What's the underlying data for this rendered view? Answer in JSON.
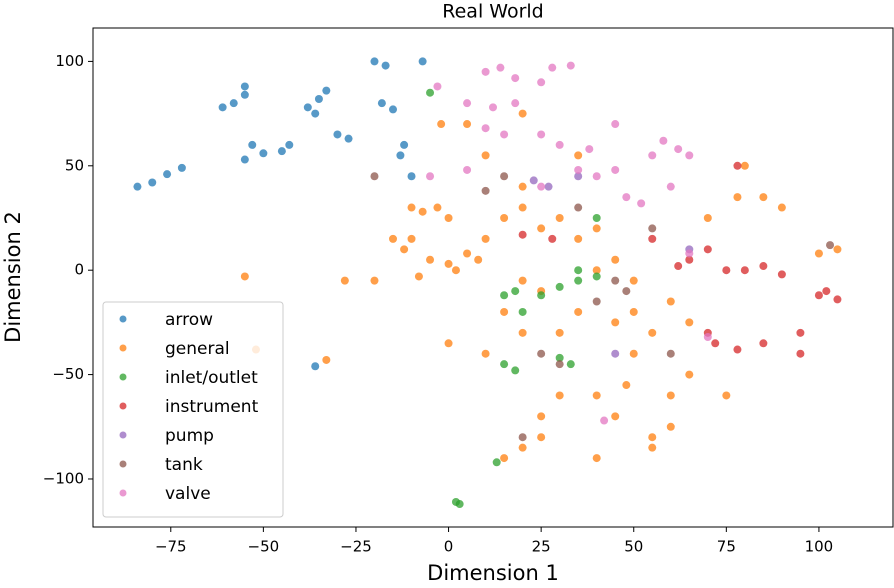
{
  "chart_data": {
    "type": "scatter",
    "title": "Real World",
    "x_label": "Dimension 1",
    "y_label": "Dimension 2",
    "xlim": [
      -96,
      120
    ],
    "ylim": [
      -123,
      116
    ],
    "xticks": [
      {
        "value": -75,
        "label": "−75"
      },
      {
        "value": -50,
        "label": "−50"
      },
      {
        "value": -25,
        "label": "−25"
      },
      0,
      25,
      50,
      75,
      100
    ],
    "yticks": [
      {
        "value": -100,
        "label": "−100"
      },
      {
        "value": -50,
        "label": "−50"
      },
      0,
      50,
      100
    ],
    "legend": "lower left",
    "grid": false,
    "series": [
      {
        "name": "arrow",
        "color": "#1f77b4",
        "x": [
          -80,
          -76,
          -72,
          -84,
          -58,
          -55,
          -61,
          -55,
          -35,
          -38,
          -33,
          -36,
          -53,
          -50,
          -45,
          -55,
          -43,
          -27,
          -30,
          -20,
          -17,
          -18,
          -15,
          -12,
          -13,
          -7,
          -10,
          -36
        ],
        "y": [
          42,
          46,
          49,
          40,
          80,
          84,
          78,
          88,
          82,
          78,
          86,
          75,
          60,
          56,
          57,
          53,
          60,
          63,
          65,
          100,
          98,
          80,
          77,
          60,
          55,
          100,
          45,
          -46
        ]
      },
      {
        "name": "general",
        "color": "#ff7f0e",
        "x": [
          -7,
          -3,
          0,
          -10,
          -5,
          0,
          5,
          -8,
          -12,
          2,
          8,
          -15,
          10,
          15,
          20,
          25,
          30,
          35,
          40,
          20,
          25,
          30,
          20,
          15,
          35,
          45,
          50,
          55,
          50,
          48,
          40,
          30,
          25,
          45,
          20,
          15,
          25,
          40,
          55,
          60,
          65,
          75,
          60,
          55,
          78,
          85,
          90,
          105,
          100,
          60,
          65,
          -20,
          -28,
          -55,
          -52,
          -33,
          0,
          10,
          40,
          45,
          50,
          70,
          80,
          20,
          20,
          35,
          10,
          -2,
          5,
          -10
        ],
        "y": [
          28,
          30,
          25,
          30,
          5,
          3,
          8,
          -3,
          10,
          0,
          5,
          15,
          15,
          25,
          30,
          20,
          25,
          15,
          20,
          -5,
          -10,
          -30,
          -30,
          -20,
          -20,
          -25,
          -20,
          -30,
          -40,
          -55,
          -60,
          -60,
          -70,
          -70,
          -85,
          -90,
          -80,
          -90,
          -85,
          -60,
          -50,
          -60,
          -75,
          -80,
          35,
          35,
          30,
          10,
          8,
          -15,
          -25,
          -5,
          -5,
          -3,
          -38,
          -43,
          -35,
          -40,
          0,
          5,
          -5,
          25,
          50,
          40,
          75,
          55,
          55,
          70,
          70,
          15
        ]
      },
      {
        "name": "inlet/outlet",
        "color": "#2ca02c",
        "x": [
          18,
          15,
          25,
          30,
          35,
          40,
          35,
          15,
          18,
          30,
          33,
          2,
          3,
          40,
          -5,
          20,
          13
        ],
        "y": [
          -10,
          -12,
          -12,
          -8,
          -5,
          -3,
          0,
          -45,
          -48,
          -42,
          -45,
          -111,
          -112,
          25,
          85,
          -20,
          -92
        ]
      },
      {
        "name": "instrument",
        "color": "#d62728",
        "x": [
          70,
          65,
          75,
          80,
          85,
          90,
          100,
          105,
          70,
          72,
          78,
          85,
          95,
          78,
          20,
          28,
          62,
          95,
          55,
          102
        ],
        "y": [
          10,
          5,
          0,
          0,
          2,
          -2,
          -12,
          -14,
          -30,
          -35,
          -38,
          -35,
          -40,
          50,
          17,
          15,
          2,
          -30,
          15,
          -10
        ]
      },
      {
        "name": "pump",
        "color": "#9467bd",
        "x": [
          23,
          27,
          65,
          35,
          45
        ],
        "y": [
          43,
          40,
          10,
          45,
          -40
        ]
      },
      {
        "name": "tank",
        "color": "#8c564b",
        "x": [
          15,
          10,
          -20,
          45,
          48,
          35,
          55,
          20,
          103,
          40,
          25,
          30,
          60
        ],
        "y": [
          45,
          38,
          45,
          -5,
          -10,
          30,
          20,
          -80,
          12,
          -15,
          -40,
          -45,
          -40
        ]
      },
      {
        "name": "valve",
        "color": "#e377c2",
        "x": [
          10,
          14,
          18,
          28,
          33,
          25,
          5,
          12,
          18,
          10,
          15,
          25,
          30,
          38,
          45,
          58,
          62,
          65,
          55,
          60,
          48,
          52,
          45,
          35,
          40,
          -3,
          -5,
          25,
          70,
          65,
          42,
          5
        ],
        "y": [
          95,
          97,
          92,
          97,
          98,
          90,
          80,
          78,
          80,
          68,
          65,
          65,
          60,
          58,
          70,
          62,
          58,
          55,
          55,
          40,
          35,
          32,
          48,
          48,
          45,
          88,
          45,
          40,
          -32,
          8,
          -72,
          48
        ]
      }
    ]
  }
}
